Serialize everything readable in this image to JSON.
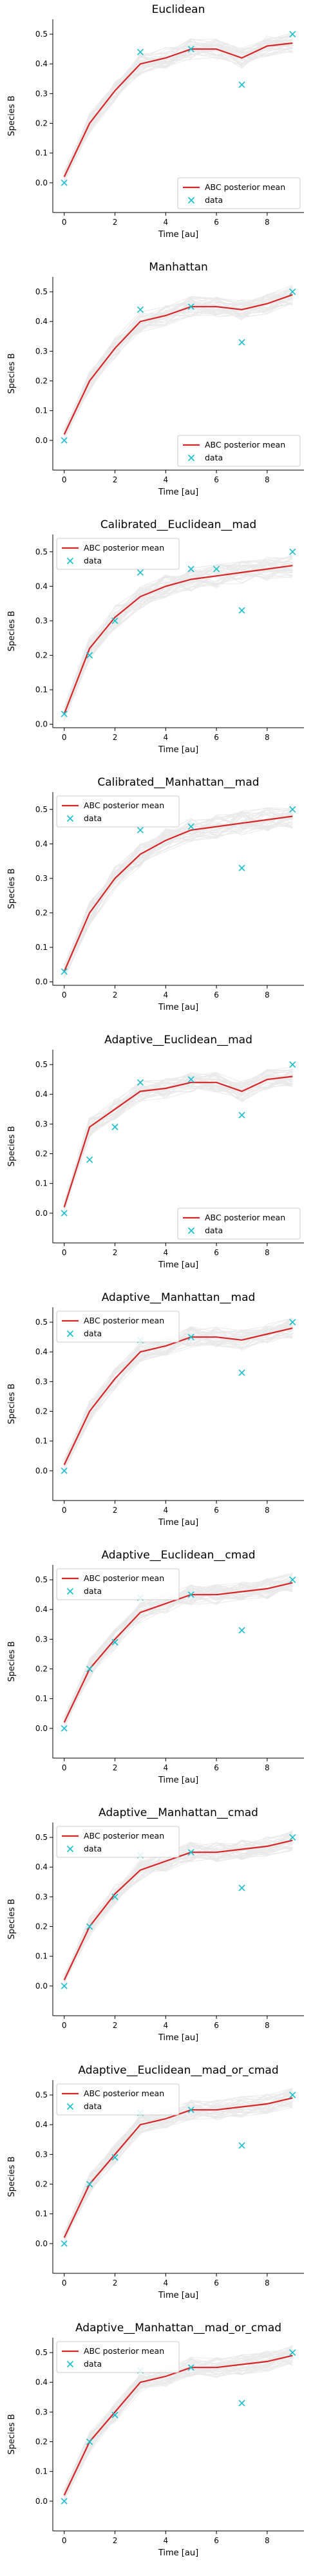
{
  "colors": {
    "mean_line": "#d62728",
    "data_marker": "#17becf",
    "samples": "#8a8a8a"
  },
  "chart_data": [
    {
      "type": "line",
      "title": "Euclidean",
      "xlabel": "Time [au]",
      "ylabel": "Species B",
      "xlim": [
        -0.45,
        9.45
      ],
      "ylim": [
        -0.1,
        0.55
      ],
      "xticks": [
        0,
        2,
        4,
        6,
        8
      ],
      "yticks": [
        0.0,
        0.1,
        0.2,
        0.3,
        0.4,
        0.5
      ],
      "grid": false,
      "legend": {
        "position": "lower-right",
        "entries": [
          "ABC posterior mean",
          "data"
        ]
      },
      "series": [
        {
          "name": "ABC posterior mean",
          "kind": "line",
          "x": [
            0,
            1,
            2,
            3,
            4,
            5,
            6,
            7,
            8,
            9
          ],
          "y": [
            0.02,
            0.2,
            0.31,
            0.4,
            0.42,
            0.45,
            0.45,
            0.42,
            0.46,
            0.47
          ]
        },
        {
          "name": "data",
          "kind": "scatter",
          "x": [
            0,
            3,
            5,
            7,
            9
          ],
          "y": [
            0.0,
            0.44,
            0.45,
            0.33,
            0.5
          ]
        }
      ]
    },
    {
      "type": "line",
      "title": "Manhattan",
      "xlabel": "Time [au]",
      "ylabel": "Species B",
      "xlim": [
        -0.45,
        9.45
      ],
      "ylim": [
        -0.1,
        0.55
      ],
      "xticks": [
        0,
        2,
        4,
        6,
        8
      ],
      "yticks": [
        0.0,
        0.1,
        0.2,
        0.3,
        0.4,
        0.5
      ],
      "grid": false,
      "legend": {
        "position": "lower-right",
        "entries": [
          "ABC posterior mean",
          "data"
        ]
      },
      "series": [
        {
          "name": "ABC posterior mean",
          "kind": "line",
          "x": [
            0,
            1,
            2,
            3,
            4,
            5,
            6,
            7,
            8,
            9
          ],
          "y": [
            0.02,
            0.2,
            0.31,
            0.4,
            0.42,
            0.45,
            0.45,
            0.44,
            0.46,
            0.49
          ]
        },
        {
          "name": "data",
          "kind": "scatter",
          "x": [
            0,
            3,
            5,
            7,
            9
          ],
          "y": [
            0.0,
            0.44,
            0.45,
            0.33,
            0.5
          ]
        }
      ]
    },
    {
      "type": "line",
      "title": "Calibrated__Euclidean__mad",
      "xlabel": "Time [au]",
      "ylabel": "Species B",
      "xlim": [
        -0.45,
        9.45
      ],
      "ylim": [
        -0.01,
        0.55
      ],
      "xticks": [
        0,
        2,
        4,
        6,
        8
      ],
      "yticks": [
        0.0,
        0.1,
        0.2,
        0.3,
        0.4,
        0.5
      ],
      "grid": false,
      "legend": {
        "position": "upper-left",
        "entries": [
          "ABC posterior mean",
          "data"
        ]
      },
      "series": [
        {
          "name": "ABC posterior mean",
          "kind": "line",
          "x": [
            0,
            1,
            2,
            3,
            4,
            5,
            6,
            7,
            8,
            9
          ],
          "y": [
            0.03,
            0.22,
            0.31,
            0.37,
            0.4,
            0.42,
            0.43,
            0.44,
            0.45,
            0.46
          ]
        },
        {
          "name": "data",
          "kind": "scatter",
          "x": [
            0,
            1,
            2,
            3,
            5,
            6,
            7,
            9
          ],
          "y": [
            0.03,
            0.2,
            0.3,
            0.44,
            0.45,
            0.45,
            0.33,
            0.5
          ]
        }
      ]
    },
    {
      "type": "line",
      "title": "Calibrated__Manhattan__mad",
      "xlabel": "Time [au]",
      "ylabel": "Species B",
      "xlim": [
        -0.45,
        9.45
      ],
      "ylim": [
        -0.01,
        0.55
      ],
      "xticks": [
        0,
        2,
        4,
        6,
        8
      ],
      "yticks": [
        0.0,
        0.1,
        0.2,
        0.3,
        0.4,
        0.5
      ],
      "grid": false,
      "legend": {
        "position": "upper-left",
        "entries": [
          "ABC posterior mean",
          "data"
        ]
      },
      "series": [
        {
          "name": "ABC posterior mean",
          "kind": "line",
          "x": [
            0,
            1,
            2,
            3,
            4,
            5,
            6,
            7,
            8,
            9
          ],
          "y": [
            0.03,
            0.2,
            0.3,
            0.37,
            0.41,
            0.44,
            0.45,
            0.46,
            0.47,
            0.48
          ]
        },
        {
          "name": "data",
          "kind": "scatter",
          "x": [
            0,
            3,
            5,
            7,
            9
          ],
          "y": [
            0.03,
            0.44,
            0.45,
            0.33,
            0.5
          ]
        }
      ]
    },
    {
      "type": "line",
      "title": "Adaptive__Euclidean__mad",
      "xlabel": "Time [au]",
      "ylabel": "Species B",
      "xlim": [
        -0.45,
        9.45
      ],
      "ylim": [
        -0.1,
        0.55
      ],
      "xticks": [
        0,
        2,
        4,
        6,
        8
      ],
      "yticks": [
        0.0,
        0.1,
        0.2,
        0.3,
        0.4,
        0.5
      ],
      "grid": false,
      "legend": {
        "position": "lower-right",
        "entries": [
          "ABC posterior mean",
          "data"
        ]
      },
      "series": [
        {
          "name": "ABC posterior mean",
          "kind": "line",
          "x": [
            0,
            1,
            2,
            3,
            4,
            5,
            6,
            7,
            8,
            9
          ],
          "y": [
            0.02,
            0.29,
            0.35,
            0.41,
            0.42,
            0.44,
            0.44,
            0.41,
            0.45,
            0.46
          ]
        },
        {
          "name": "data",
          "kind": "scatter",
          "x": [
            0,
            1,
            2,
            3,
            5,
            7,
            9
          ],
          "y": [
            0.0,
            0.18,
            0.29,
            0.44,
            0.45,
            0.33,
            0.5
          ]
        }
      ]
    },
    {
      "type": "line",
      "title": "Adaptive__Manhattan__mad",
      "xlabel": "Time [au]",
      "ylabel": "Species B",
      "xlim": [
        -0.45,
        9.45
      ],
      "ylim": [
        -0.1,
        0.55
      ],
      "xticks": [
        0,
        2,
        4,
        6,
        8
      ],
      "yticks": [
        0.0,
        0.1,
        0.2,
        0.3,
        0.4,
        0.5
      ],
      "grid": false,
      "legend": {
        "position": "upper-left",
        "entries": [
          "ABC posterior mean",
          "data"
        ]
      },
      "series": [
        {
          "name": "ABC posterior mean",
          "kind": "line",
          "x": [
            0,
            1,
            2,
            3,
            4,
            5,
            6,
            7,
            8,
            9
          ],
          "y": [
            0.02,
            0.2,
            0.31,
            0.4,
            0.42,
            0.45,
            0.45,
            0.44,
            0.46,
            0.48
          ]
        },
        {
          "name": "data",
          "kind": "scatter",
          "x": [
            0,
            3,
            5,
            7,
            9
          ],
          "y": [
            0.0,
            0.44,
            0.45,
            0.33,
            0.5
          ]
        }
      ]
    },
    {
      "type": "line",
      "title": "Adaptive__Euclidean__cmad",
      "xlabel": "Time [au]",
      "ylabel": "Species B",
      "xlim": [
        -0.45,
        9.45
      ],
      "ylim": [
        -0.1,
        0.55
      ],
      "xticks": [
        0,
        2,
        4,
        6,
        8
      ],
      "yticks": [
        0.0,
        0.1,
        0.2,
        0.3,
        0.4,
        0.5
      ],
      "grid": false,
      "legend": {
        "position": "upper-left",
        "entries": [
          "ABC posterior mean",
          "data"
        ]
      },
      "series": [
        {
          "name": "ABC posterior mean",
          "kind": "line",
          "x": [
            0,
            1,
            2,
            3,
            4,
            5,
            6,
            7,
            8,
            9
          ],
          "y": [
            0.02,
            0.2,
            0.3,
            0.39,
            0.42,
            0.45,
            0.45,
            0.46,
            0.47,
            0.49
          ]
        },
        {
          "name": "data",
          "kind": "scatter",
          "x": [
            0,
            1,
            2,
            3,
            5,
            7,
            9
          ],
          "y": [
            0.0,
            0.2,
            0.29,
            0.44,
            0.45,
            0.33,
            0.5
          ]
        }
      ]
    },
    {
      "type": "line",
      "title": "Adaptive__Manhattan__cmad",
      "xlabel": "Time [au]",
      "ylabel": "Species B",
      "xlim": [
        -0.45,
        9.45
      ],
      "ylim": [
        -0.1,
        0.55
      ],
      "xticks": [
        0,
        2,
        4,
        6,
        8
      ],
      "yticks": [
        0.0,
        0.1,
        0.2,
        0.3,
        0.4,
        0.5
      ],
      "grid": false,
      "legend": {
        "position": "upper-left",
        "entries": [
          "ABC posterior mean",
          "data"
        ]
      },
      "series": [
        {
          "name": "ABC posterior mean",
          "kind": "line",
          "x": [
            0,
            1,
            2,
            3,
            4,
            5,
            6,
            7,
            8,
            9
          ],
          "y": [
            0.02,
            0.2,
            0.31,
            0.39,
            0.42,
            0.45,
            0.45,
            0.46,
            0.47,
            0.49
          ]
        },
        {
          "name": "data",
          "kind": "scatter",
          "x": [
            0,
            1,
            2,
            3,
            5,
            7,
            9
          ],
          "y": [
            0.0,
            0.2,
            0.3,
            0.44,
            0.45,
            0.33,
            0.5
          ]
        }
      ]
    },
    {
      "type": "line",
      "title": "Adaptive__Euclidean__mad_or_cmad",
      "xlabel": "Time [au]",
      "ylabel": "Species B",
      "xlim": [
        -0.45,
        9.45
      ],
      "ylim": [
        -0.1,
        0.55
      ],
      "xticks": [
        0,
        2,
        4,
        6,
        8
      ],
      "yticks": [
        0.0,
        0.1,
        0.2,
        0.3,
        0.4,
        0.5
      ],
      "grid": false,
      "legend": {
        "position": "upper-left",
        "entries": [
          "ABC posterior mean",
          "data"
        ]
      },
      "series": [
        {
          "name": "ABC posterior mean",
          "kind": "line",
          "x": [
            0,
            1,
            2,
            3,
            4,
            5,
            6,
            7,
            8,
            9
          ],
          "y": [
            0.02,
            0.2,
            0.3,
            0.4,
            0.42,
            0.45,
            0.45,
            0.46,
            0.47,
            0.49
          ]
        },
        {
          "name": "data",
          "kind": "scatter",
          "x": [
            0,
            1,
            2,
            3,
            5,
            7,
            9
          ],
          "y": [
            0.0,
            0.2,
            0.29,
            0.44,
            0.45,
            0.33,
            0.5
          ]
        }
      ]
    },
    {
      "type": "line",
      "title": "Adaptive__Manhattan__mad_or_cmad",
      "xlabel": "Time [au]",
      "ylabel": "Species B",
      "xlim": [
        -0.45,
        9.45
      ],
      "ylim": [
        -0.1,
        0.55
      ],
      "xticks": [
        0,
        2,
        4,
        6,
        8
      ],
      "yticks": [
        0.0,
        0.1,
        0.2,
        0.3,
        0.4,
        0.5
      ],
      "grid": false,
      "legend": {
        "position": "upper-left",
        "entries": [
          "ABC posterior mean",
          "data"
        ]
      },
      "series": [
        {
          "name": "ABC posterior mean",
          "kind": "line",
          "x": [
            0,
            1,
            2,
            3,
            4,
            5,
            6,
            7,
            8,
            9
          ],
          "y": [
            0.02,
            0.2,
            0.3,
            0.4,
            0.42,
            0.45,
            0.45,
            0.46,
            0.47,
            0.49
          ]
        },
        {
          "name": "data",
          "kind": "scatter",
          "x": [
            0,
            1,
            2,
            3,
            5,
            7,
            9
          ],
          "y": [
            0.0,
            0.2,
            0.29,
            0.44,
            0.45,
            0.33,
            0.5
          ]
        }
      ]
    }
  ]
}
